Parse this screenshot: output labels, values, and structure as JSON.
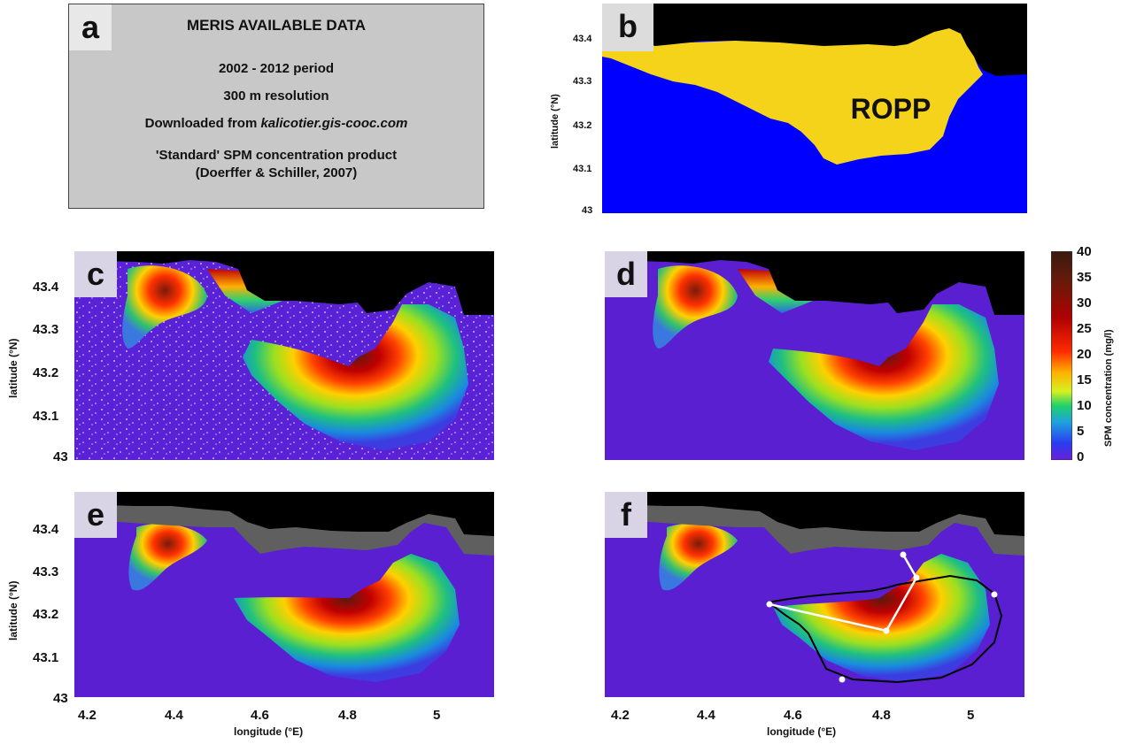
{
  "panels": {
    "a": {
      "letter": "a",
      "title": "MERIS AVAILABLE DATA",
      "line1": "2002 - 2012 period",
      "line2": "300 m resolution",
      "line3_prefix": "Downloaded from ",
      "line3_link": "kalicotier.gis-cooc.com",
      "line4": "'Standard' SPM concentration product",
      "line5": "(Doerffer & Schiller, 2007)"
    },
    "b": {
      "letter": "b",
      "region_label": "ROPP"
    },
    "c": {
      "letter": "c"
    },
    "d": {
      "letter": "d"
    },
    "e": {
      "letter": "e"
    },
    "f": {
      "letter": "f"
    }
  },
  "axes": {
    "ylabel": "latitude (°N)",
    "xlabel": "longitude (°E)",
    "b_yticks": [
      "43.4",
      "43.3",
      "43.2",
      "43.1",
      "43"
    ],
    "yticks": [
      "43.4",
      "43.3",
      "43.2",
      "43.1",
      "43"
    ],
    "xticks": [
      "4.2",
      "4.4",
      "4.6",
      "4.8",
      "5"
    ]
  },
  "colorbar": {
    "label": "SPM concentration (mg/l)",
    "ticks": [
      "40",
      "35",
      "30",
      "25",
      "20",
      "15",
      "10",
      "5",
      "0"
    ]
  },
  "colors": {
    "land": "#000000",
    "sea_b": "#0000ff",
    "ropp": "#f5d31a",
    "background_water": "#5a1fd0",
    "masked_land": "#5f5f5f",
    "panel_label_bg": "#d9d3e6",
    "info_box_bg": "#c8c8c8"
  }
}
